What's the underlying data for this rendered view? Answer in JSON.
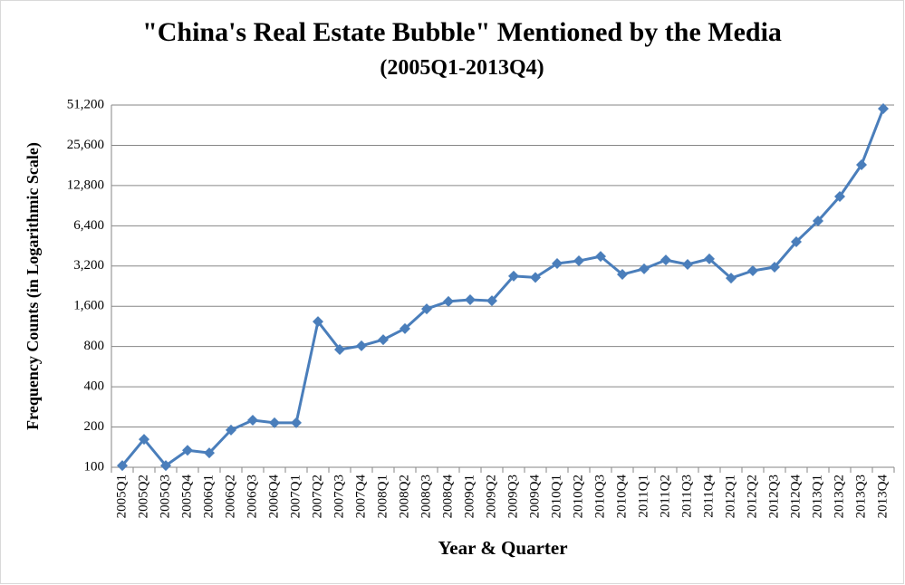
{
  "chart_data": {
    "type": "line",
    "title": "\"China's Real Estate Bubble\" Mentioned  by the Media",
    "subtitle": "(2005Q1-2013Q4)",
    "x_label": "Year & Quarter",
    "y_label": "Frequency Counts (in Logarithmic Scale)",
    "categories": [
      "2005Q1",
      "2005Q2",
      "2005Q3",
      "2005Q4",
      "2006Q1",
      "2006Q2",
      "2006Q3",
      "2006Q4",
      "2007Q1",
      "2007Q2",
      "2007Q3",
      "2007Q4",
      "2008Q1",
      "2008Q2",
      "2008Q3",
      "2008Q4",
      "2009Q1",
      "2009Q2",
      "2009Q3",
      "2009Q4",
      "2010Q1",
      "2010Q2",
      "2010Q3",
      "2010Q4",
      "2011Q1",
      "2011Q2",
      "2011Q3",
      "2011Q4",
      "2012Q1",
      "2012Q2",
      "2012Q3",
      "2012Q4",
      "2013Q1",
      "2013Q2",
      "2013Q3",
      "2013Q4"
    ],
    "values": [
      103,
      162,
      103,
      134,
      128,
      190,
      225,
      215,
      215,
      1230,
      760,
      810,
      900,
      1090,
      1530,
      1740,
      1790,
      1760,
      2690,
      2630,
      3340,
      3500,
      3780,
      2770,
      3050,
      3550,
      3290,
      3620,
      2600,
      2950,
      3140,
      4860,
      6950,
      10600,
      18300,
      48100
    ],
    "color": "#4a7ebb",
    "log_scale": true,
    "grid": true,
    "ylim": [
      100,
      51200
    ],
    "yticks": [
      100,
      200,
      400,
      800,
      {
        "value": 1600,
        "label": "1,600"
      },
      {
        "value": 3200,
        "label": "3,200"
      },
      {
        "value": 6400,
        "label": "6,400"
      },
      {
        "value": 12800,
        "label": "12,800"
      },
      {
        "value": 25600,
        "label": "25,600"
      },
      {
        "value": 51200,
        "label": "51,200"
      }
    ]
  }
}
